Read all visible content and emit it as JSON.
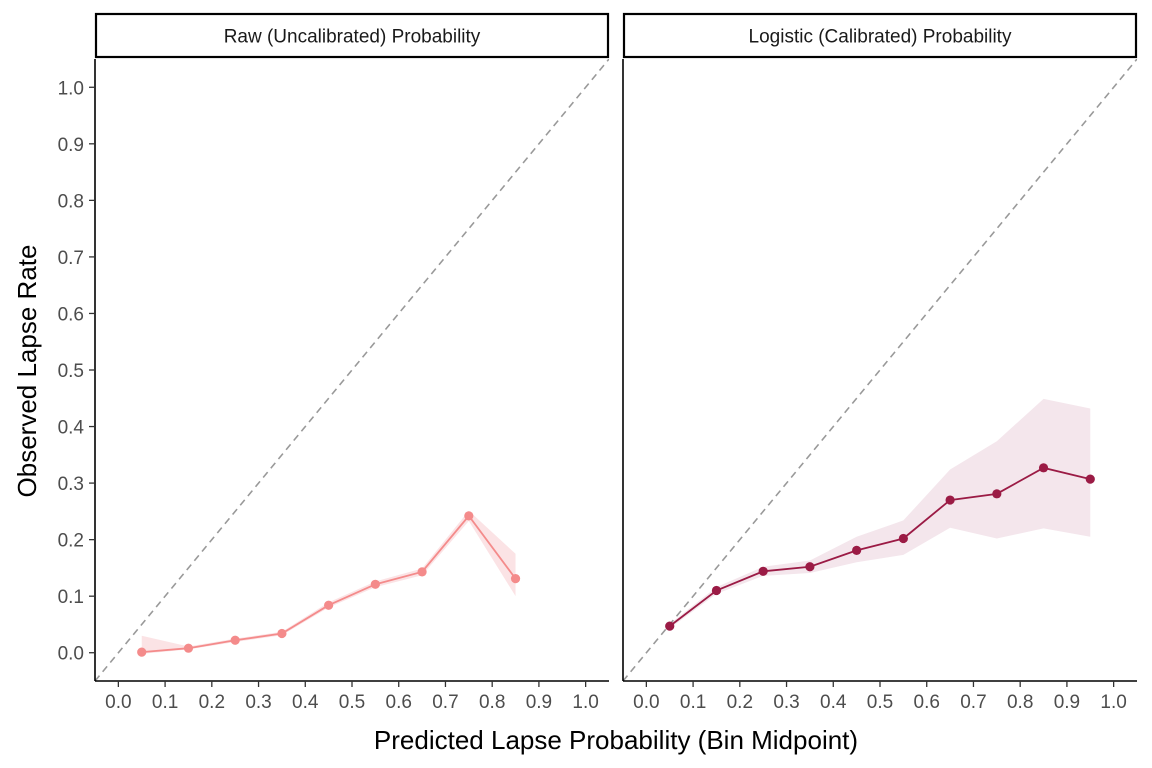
{
  "chart_data": {
    "type": "line",
    "xlabel": "Predicted Lapse Probability (Bin Midpoint)",
    "ylabel": "Observed Lapse Rate",
    "xlim": [
      -0.05,
      1.05
    ],
    "ylim": [
      -0.05,
      1.05
    ],
    "x_ticks": [
      "0.0",
      "0.1",
      "0.2",
      "0.3",
      "0.4",
      "0.5",
      "0.6",
      "0.7",
      "0.8",
      "0.9",
      "1.0"
    ],
    "y_ticks": [
      "0.0",
      "0.1",
      "0.2",
      "0.3",
      "0.4",
      "0.5",
      "0.6",
      "0.7",
      "0.8",
      "0.9",
      "1.0"
    ],
    "grid": false,
    "reference_line": "y = x (dashed grey)",
    "panels": [
      {
        "strip": "Raw (Uncalibrated) Probability",
        "color": "#f48b8b",
        "band_color": "#fbe3e5",
        "x": [
          0.05,
          0.15,
          0.25,
          0.35,
          0.45,
          0.55,
          0.65,
          0.75,
          0.85
        ],
        "y": [
          0.001,
          0.008,
          0.022,
          0.034,
          0.084,
          0.121,
          0.143,
          0.242,
          0.131
        ],
        "ci_low": [
          -0.002,
          0.006,
          0.019,
          0.031,
          0.08,
          0.116,
          0.137,
          0.233,
          0.1
        ],
        "ci_high": [
          0.03,
          0.011,
          0.025,
          0.037,
          0.089,
          0.126,
          0.149,
          0.251,
          0.175
        ]
      },
      {
        "strip": "Logistic (Calibrated) Probability",
        "color": "#9b1b45",
        "band_color": "#f4e6ec",
        "x": [
          0.05,
          0.15,
          0.25,
          0.35,
          0.45,
          0.55,
          0.65,
          0.75,
          0.85,
          0.95
        ],
        "y": [
          0.047,
          0.11,
          0.144,
          0.152,
          0.181,
          0.202,
          0.27,
          0.281,
          0.327,
          0.307
        ],
        "ci_low": [
          0.043,
          0.104,
          0.136,
          0.141,
          0.16,
          0.173,
          0.221,
          0.202,
          0.22,
          0.205
        ],
        "ci_high": [
          0.051,
          0.116,
          0.152,
          0.163,
          0.205,
          0.234,
          0.324,
          0.374,
          0.449,
          0.432
        ]
      }
    ]
  }
}
